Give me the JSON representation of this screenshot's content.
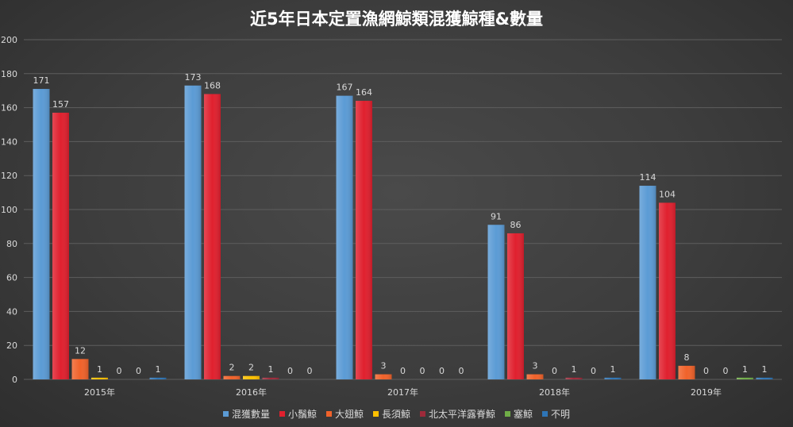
{
  "chart_data": {
    "type": "bar",
    "title": "近5年日本定置漁網鯨類混獲鯨種&數量",
    "categories": [
      "2015年",
      "2016年",
      "2017年",
      "2018年",
      "2019年"
    ],
    "ylim": [
      0,
      200
    ],
    "yticks": [
      0,
      20,
      40,
      60,
      80,
      100,
      120,
      140,
      160,
      180,
      200
    ],
    "grid": true,
    "legend_position": "bottom",
    "series": [
      {
        "name": "混獲數量",
        "color": "#5b9bd5",
        "values": [
          171,
          173,
          167,
          91,
          114
        ]
      },
      {
        "name": "小鬚鯨",
        "color": "#e0202e",
        "values": [
          157,
          168,
          164,
          86,
          104
        ]
      },
      {
        "name": "大翅鯨",
        "color": "#f0622a",
        "values": [
          12,
          2,
          3,
          3,
          8
        ]
      },
      {
        "name": "長須鯨",
        "color": "#ffc000",
        "values": [
          1,
          2,
          0,
          0,
          0
        ]
      },
      {
        "name": "北太平洋露脊鯨",
        "color": "#9e2a3a",
        "values": [
          0,
          1,
          0,
          1,
          0
        ]
      },
      {
        "name": "塞鯨",
        "color": "#70ad47",
        "values": [
          0,
          0,
          0,
          0,
          1
        ]
      },
      {
        "name": "不明",
        "color": "#2e75b6",
        "values": [
          1,
          0,
          0,
          1,
          1
        ]
      }
    ]
  }
}
